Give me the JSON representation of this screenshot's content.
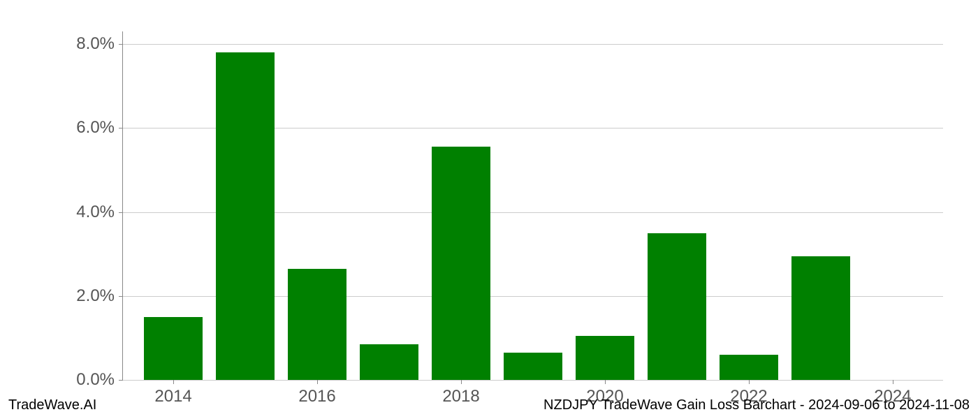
{
  "chart": {
    "type": "bar",
    "years": [
      2014,
      2015,
      2016,
      2017,
      2018,
      2019,
      2020,
      2021,
      2022,
      2023,
      2024
    ],
    "values": [
      1.5,
      7.8,
      2.65,
      0.85,
      5.55,
      0.65,
      1.05,
      3.5,
      0.6,
      2.95,
      0.0
    ],
    "bar_color": "#008000",
    "bar_width": 0.82,
    "background_color": "#ffffff",
    "grid_color": "#cccccc",
    "axis_color": "#888888",
    "tick_label_color": "#555555",
    "tick_fontsize": 24,
    "y_axis": {
      "min": 0.0,
      "max": 8.3,
      "ticks": [
        0.0,
        2.0,
        4.0,
        6.0,
        8.0
      ],
      "tick_labels": [
        "0.0%",
        "2.0%",
        "4.0%",
        "6.0%",
        "8.0%"
      ]
    },
    "x_axis": {
      "min": 2013.3,
      "max": 2024.7,
      "ticks": [
        2014,
        2016,
        2018,
        2020,
        2022,
        2024
      ],
      "tick_labels": [
        "2014",
        "2016",
        "2018",
        "2020",
        "2022",
        "2024"
      ]
    }
  },
  "footer": {
    "left": "TradeWave.AI",
    "right": "NZDJPY TradeWave Gain Loss Barchart - 2024-09-06 to 2024-11-08",
    "fontsize": 20,
    "color": "#000000"
  }
}
